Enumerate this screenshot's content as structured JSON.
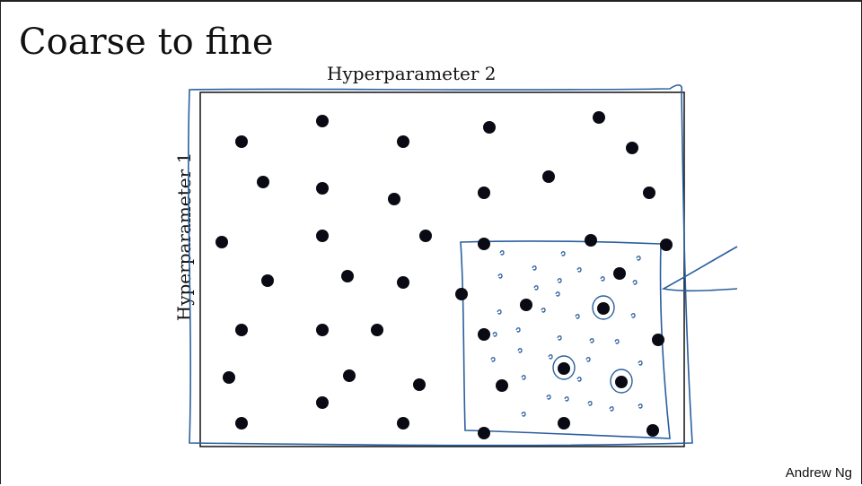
{
  "slide": {
    "title": "Coarse to fine",
    "x_axis_label": "Hyperparameter 2",
    "y_axis_label": "Hyperparameter 1",
    "author": "Andrew Ng"
  },
  "colors": {
    "ink": "#111111",
    "dot": "#0a0a14",
    "annotation": "#2b5f9e"
  },
  "icons": {
    "sample_point": "filled-black-circle",
    "fine_sample_mark": "small-blue-squiggle",
    "best_point_mark": "blue-circle-around-dot"
  },
  "chart_data": {
    "type": "scatter",
    "title": "Coarse to fine",
    "xlabel": "Hyperparameter 2",
    "ylabel": "Hyperparameter 1",
    "axes_ticks": false,
    "coarse_samples": [
      [
        358,
        133
      ],
      [
        666,
        129
      ],
      [
        268,
        156
      ],
      [
        448,
        156
      ],
      [
        544,
        140
      ],
      [
        703,
        163
      ],
      [
        292,
        201
      ],
      [
        358,
        208
      ],
      [
        438,
        220
      ],
      [
        538,
        213
      ],
      [
        610,
        195
      ],
      [
        722,
        213
      ],
      [
        246,
        268
      ],
      [
        358,
        261
      ],
      [
        473,
        261
      ],
      [
        538,
        270
      ],
      [
        657,
        266
      ],
      [
        741,
        271
      ],
      [
        297,
        311
      ],
      [
        386,
        306
      ],
      [
        448,
        313
      ],
      [
        513,
        326
      ],
      [
        585,
        338
      ],
      [
        689,
        303
      ],
      [
        268,
        366
      ],
      [
        358,
        366
      ],
      [
        419,
        366
      ],
      [
        538,
        371
      ],
      [
        732,
        377
      ],
      [
        254,
        419
      ],
      [
        388,
        417
      ],
      [
        466,
        427
      ],
      [
        558,
        428
      ],
      [
        358,
        447
      ],
      [
        268,
        470
      ],
      [
        448,
        470
      ],
      [
        538,
        481
      ],
      [
        627,
        470
      ],
      [
        726,
        478
      ]
    ],
    "fine_region_points_circled": [
      [
        671,
        342
      ],
      [
        627,
        409
      ],
      [
        691,
        424
      ]
    ]
  }
}
